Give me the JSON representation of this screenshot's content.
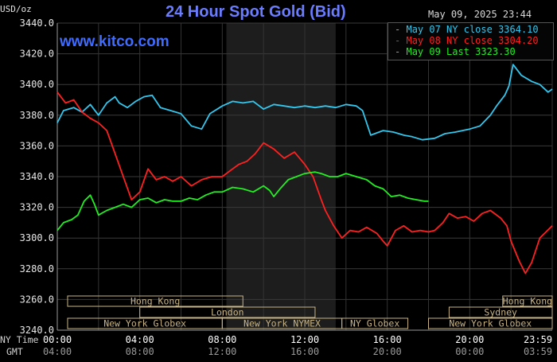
{
  "header": {
    "title": "24 Hour Spot Gold (Bid)",
    "timestamp": "May 09, 2025 23:44",
    "unit": "USD/oz",
    "brand": "www.kitco.com"
  },
  "colors": {
    "series_may07": "#33c7ee",
    "series_may08": "#ff2020",
    "series_may09": "#22ee22",
    "market_band": "#c8b484",
    "background": "#000000"
  },
  "legend": {
    "items": [
      {
        "label": "May 07 NY close 3364.10",
        "color": "#33c7ee"
      },
      {
        "label": "May 08 NY close 3304.20",
        "color": "#ff2020"
      },
      {
        "label": "May 09 Last 3323.30",
        "color": "#22ee22"
      }
    ]
  },
  "timeline": {
    "row_ny_label": "NY Time",
    "row_gmt_label": "GMT",
    "ny_ticks": [
      "00:00",
      "04:00",
      "08:00",
      "12:00",
      "16:00",
      "20:00",
      "23:59"
    ],
    "gmt_ticks": [
      "04:00",
      "08:00",
      "12:00",
      "16:00",
      "20:00",
      "00:00",
      "03:59"
    ],
    "markets": [
      {
        "label": "Hong Kong",
        "row": 0,
        "start": 0.5,
        "end": 9.0
      },
      {
        "label": "London",
        "row": 1,
        "start": 4.0,
        "end": 12.5
      },
      {
        "label": "New York Globex",
        "row": 2,
        "start": 0.5,
        "end": 8.0
      },
      {
        "label": "New York NYMEX",
        "row": 2,
        "start": 8.0,
        "end": 13.8
      },
      {
        "label": "NY Globex",
        "row": 2,
        "start": 13.8,
        "end": 17.0
      },
      {
        "label": "Hong Kong",
        "row": 0,
        "start": 21.6,
        "end": 24.0
      },
      {
        "label": "Sydney",
        "row": 1,
        "start": 19.0,
        "end": 24.0
      },
      {
        "label": "New York Globex",
        "row": 2,
        "start": 18.0,
        "end": 24.0
      }
    ]
  },
  "chart_data": {
    "type": "line",
    "title": "24 Hour Spot Gold (Bid)",
    "xlabel": "NY Time",
    "ylabel": "USD/oz",
    "ylim": [
      3240,
      3440
    ],
    "xlim": [
      0,
      24
    ],
    "y_ticks": [
      "3440.0",
      "3420.0",
      "3400.0",
      "3380.0",
      "3360.0",
      "3340.0",
      "3320.0",
      "3300.0",
      "3280.0",
      "3260.0",
      "3240.0"
    ],
    "y_tick_values": [
      3440,
      3420,
      3400,
      3380,
      3360,
      3340,
      3320,
      3300,
      3280,
      3260,
      3240
    ],
    "shaded_range": [
      8.2,
      13.5
    ],
    "grid": true,
    "series": [
      {
        "name": "May 07 NY close 3364.10",
        "color": "#33c7ee",
        "points": [
          [
            0,
            3375
          ],
          [
            0.3,
            3383
          ],
          [
            0.8,
            3385
          ],
          [
            1.2,
            3382
          ],
          [
            1.6,
            3387
          ],
          [
            2.0,
            3380
          ],
          [
            2.4,
            3388
          ],
          [
            2.8,
            3392
          ],
          [
            3.0,
            3388
          ],
          [
            3.4,
            3385
          ],
          [
            3.8,
            3389
          ],
          [
            4.2,
            3392
          ],
          [
            4.6,
            3393
          ],
          [
            5.0,
            3385
          ],
          [
            5.5,
            3383
          ],
          [
            6.0,
            3381
          ],
          [
            6.5,
            3373
          ],
          [
            7.0,
            3371
          ],
          [
            7.4,
            3381
          ],
          [
            8.0,
            3386
          ],
          [
            8.5,
            3389
          ],
          [
            9.0,
            3388
          ],
          [
            9.5,
            3389
          ],
          [
            10.0,
            3384
          ],
          [
            10.5,
            3387
          ],
          [
            11.0,
            3386
          ],
          [
            11.5,
            3385
          ],
          [
            12.0,
            3386
          ],
          [
            12.5,
            3385
          ],
          [
            13.0,
            3386
          ],
          [
            13.5,
            3385
          ],
          [
            14.0,
            3387
          ],
          [
            14.5,
            3386
          ],
          [
            14.8,
            3383
          ],
          [
            15.2,
            3367
          ],
          [
            15.8,
            3370
          ],
          [
            16.3,
            3369
          ],
          [
            16.8,
            3367
          ],
          [
            17.2,
            3366
          ],
          [
            17.7,
            3364
          ],
          [
            18.3,
            3365
          ],
          [
            18.8,
            3368
          ],
          [
            19.3,
            3369
          ],
          [
            20.0,
            3371
          ],
          [
            20.5,
            3373
          ],
          [
            21.0,
            3380
          ],
          [
            21.3,
            3386
          ],
          [
            21.7,
            3393
          ],
          [
            21.9,
            3399
          ],
          [
            22.1,
            3413
          ],
          [
            22.5,
            3406
          ],
          [
            23.0,
            3402
          ],
          [
            23.4,
            3400
          ],
          [
            23.8,
            3395
          ],
          [
            24.0,
            3397
          ]
        ]
      },
      {
        "name": "May 08 NY close 3304.20",
        "color": "#ff2020",
        "points": [
          [
            0,
            3395
          ],
          [
            0.4,
            3388
          ],
          [
            0.8,
            3390
          ],
          [
            1.2,
            3382
          ],
          [
            1.6,
            3378
          ],
          [
            2.0,
            3375
          ],
          [
            2.4,
            3370
          ],
          [
            2.8,
            3355
          ],
          [
            3.2,
            3340
          ],
          [
            3.6,
            3325
          ],
          [
            4.0,
            3330
          ],
          [
            4.4,
            3345
          ],
          [
            4.8,
            3338
          ],
          [
            5.2,
            3340
          ],
          [
            5.6,
            3337
          ],
          [
            6.0,
            3340
          ],
          [
            6.5,
            3334
          ],
          [
            7.0,
            3338
          ],
          [
            7.5,
            3340
          ],
          [
            8.0,
            3340
          ],
          [
            8.5,
            3345
          ],
          [
            8.8,
            3348
          ],
          [
            9.2,
            3350
          ],
          [
            9.6,
            3355
          ],
          [
            10.0,
            3362
          ],
          [
            10.5,
            3358
          ],
          [
            11.0,
            3352
          ],
          [
            11.5,
            3356
          ],
          [
            12.0,
            3348
          ],
          [
            12.4,
            3340
          ],
          [
            12.8,
            3325
          ],
          [
            13.0,
            3318
          ],
          [
            13.4,
            3308
          ],
          [
            13.8,
            3300
          ],
          [
            14.2,
            3305
          ],
          [
            14.6,
            3304
          ],
          [
            15.0,
            3307
          ],
          [
            15.5,
            3303
          ],
          [
            15.8,
            3298
          ],
          [
            16.0,
            3295
          ],
          [
            16.4,
            3305
          ],
          [
            16.8,
            3308
          ],
          [
            17.2,
            3304
          ],
          [
            17.6,
            3305
          ],
          [
            18.0,
            3304
          ],
          [
            18.3,
            3305
          ],
          [
            18.7,
            3310
          ],
          [
            19.0,
            3316
          ],
          [
            19.4,
            3313
          ],
          [
            19.8,
            3314
          ],
          [
            20.2,
            3311
          ],
          [
            20.6,
            3316
          ],
          [
            21.0,
            3318
          ],
          [
            21.5,
            3313
          ],
          [
            21.8,
            3308
          ],
          [
            22.0,
            3298
          ],
          [
            22.4,
            3285
          ],
          [
            22.7,
            3277
          ],
          [
            23.0,
            3284
          ],
          [
            23.4,
            3300
          ],
          [
            23.7,
            3304
          ],
          [
            24.0,
            3308
          ]
        ]
      },
      {
        "name": "May 09 Last 3323.30",
        "color": "#22ee22",
        "points": [
          [
            0,
            3305
          ],
          [
            0.3,
            3310
          ],
          [
            0.7,
            3312
          ],
          [
            1.0,
            3315
          ],
          [
            1.3,
            3324
          ],
          [
            1.6,
            3328
          ],
          [
            1.8,
            3322
          ],
          [
            2.0,
            3315
          ],
          [
            2.4,
            3318
          ],
          [
            2.8,
            3320
          ],
          [
            3.2,
            3322
          ],
          [
            3.6,
            3320
          ],
          [
            4.0,
            3325
          ],
          [
            4.4,
            3326
          ],
          [
            4.8,
            3323
          ],
          [
            5.2,
            3325
          ],
          [
            5.6,
            3324
          ],
          [
            6.0,
            3324
          ],
          [
            6.4,
            3326
          ],
          [
            6.8,
            3325
          ],
          [
            7.2,
            3328
          ],
          [
            7.6,
            3330
          ],
          [
            8.0,
            3330
          ],
          [
            8.5,
            3333
          ],
          [
            9.0,
            3332
          ],
          [
            9.5,
            3330
          ],
          [
            10.0,
            3334
          ],
          [
            10.3,
            3331
          ],
          [
            10.5,
            3327
          ],
          [
            10.8,
            3332
          ],
          [
            11.2,
            3338
          ],
          [
            11.6,
            3340
          ],
          [
            12.0,
            3342
          ],
          [
            12.5,
            3343
          ],
          [
            12.8,
            3342
          ],
          [
            13.2,
            3340
          ],
          [
            13.6,
            3340
          ],
          [
            14.0,
            3342
          ],
          [
            14.5,
            3340
          ],
          [
            15.0,
            3338
          ],
          [
            15.4,
            3334
          ],
          [
            15.8,
            3332
          ],
          [
            16.2,
            3327
          ],
          [
            16.6,
            3328
          ],
          [
            17.0,
            3326
          ],
          [
            17.4,
            3325
          ],
          [
            17.8,
            3324
          ],
          [
            18.0,
            3324
          ]
        ]
      }
    ]
  }
}
